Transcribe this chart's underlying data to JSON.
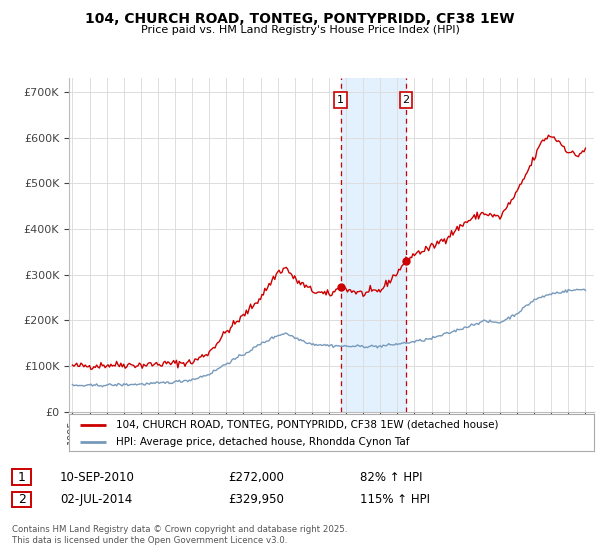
{
  "title": "104, CHURCH ROAD, TONTEG, PONTYPRIDD, CF38 1EW",
  "subtitle": "Price paid vs. HM Land Registry's House Price Index (HPI)",
  "background_color": "#ffffff",
  "plot_bg_color": "#ffffff",
  "grid_color": "#dddddd",
  "red_line_color": "#cc0000",
  "blue_line_color": "#7799bb",
  "highlight_bg_color": "#ddeeff",
  "dashed_line_color": "#cc0000",
  "ylabel_ticks": [
    "£0",
    "£100K",
    "£200K",
    "£300K",
    "£400K",
    "£500K",
    "£600K",
    "£700K"
  ],
  "ytick_values": [
    0,
    100000,
    200000,
    300000,
    400000,
    500000,
    600000,
    700000
  ],
  "ylim": [
    0,
    730000
  ],
  "xlim_start": 1994.8,
  "xlim_end": 2025.5,
  "marker1_x": 2010.69,
  "marker1_y": 272000,
  "marker1_label": "1",
  "marker1_date": "10-SEP-2010",
  "marker1_price": "£272,000",
  "marker1_hpi": "82% ↑ HPI",
  "marker2_x": 2014.5,
  "marker2_y": 329950,
  "marker2_label": "2",
  "marker2_date": "02-JUL-2014",
  "marker2_price": "£329,950",
  "marker2_hpi": "115% ↑ HPI",
  "legend_line1": "104, CHURCH ROAD, TONTEG, PONTYPRIDD, CF38 1EW (detached house)",
  "legend_line2": "HPI: Average price, detached house, Rhondda Cynon Taf",
  "footer": "Contains HM Land Registry data © Crown copyright and database right 2025.\nThis data is licensed under the Open Government Licence v3.0.",
  "xtick_years": [
    1995,
    1996,
    1997,
    1998,
    1999,
    2000,
    2001,
    2002,
    2003,
    2004,
    2005,
    2006,
    2007,
    2008,
    2009,
    2010,
    2011,
    2012,
    2013,
    2014,
    2015,
    2016,
    2017,
    2018,
    2019,
    2020,
    2021,
    2022,
    2023,
    2024,
    2025
  ]
}
